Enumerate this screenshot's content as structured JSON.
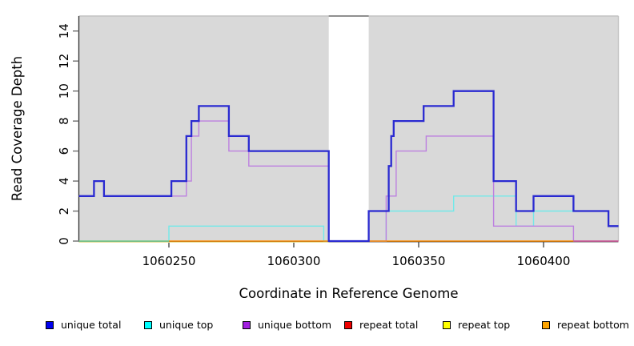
{
  "chart_data": {
    "type": "line",
    "subtype": "step-coverage",
    "title": "",
    "xlabel": "Coordinate in Reference Genome",
    "ylabel": "Read Coverage Depth",
    "xlim": [
      1060214,
      1060430
    ],
    "ylim": [
      0,
      15
    ],
    "x_ticks": [
      1060250,
      1060300,
      1060350,
      1060400
    ],
    "y_ticks": [
      0,
      2,
      4,
      6,
      8,
      10,
      12,
      14
    ],
    "grid": false,
    "plot_background": "#d9d9d9",
    "masked_region": {
      "start": 1060314,
      "end": 1060330,
      "fill": "#ffffff",
      "note": "white vertical band with gray top edge, all series at 0"
    },
    "series": [
      {
        "name": "unique total",
        "color": "#2a2ad1",
        "width": 2.3,
        "hidden": false,
        "points": [
          [
            1060214,
            3
          ],
          [
            1060220,
            4
          ],
          [
            1060224,
            3
          ],
          [
            1060251,
            4
          ],
          [
            1060257,
            7
          ],
          [
            1060259,
            8
          ],
          [
            1060262,
            9
          ],
          [
            1060274,
            7
          ],
          [
            1060282,
            6
          ],
          [
            1060314,
            0
          ],
          [
            1060330,
            2
          ],
          [
            1060338,
            5
          ],
          [
            1060339,
            7
          ],
          [
            1060340,
            8
          ],
          [
            1060352,
            9
          ],
          [
            1060364,
            10
          ],
          [
            1060380,
            4
          ],
          [
            1060389,
            2
          ],
          [
            1060396,
            3
          ],
          [
            1060412,
            2
          ],
          [
            1060426,
            1
          ],
          [
            1060430,
            1
          ]
        ]
      },
      {
        "name": "unique top",
        "color": "#72e9e9",
        "width": 1.4,
        "hidden": false,
        "points": [
          [
            1060214,
            0
          ],
          [
            1060250,
            1
          ],
          [
            1060312,
            0
          ],
          [
            1060337,
            2
          ],
          [
            1060364,
            3
          ],
          [
            1060389,
            1
          ],
          [
            1060396,
            2
          ],
          [
            1060426,
            1
          ],
          [
            1060430,
            1
          ]
        ]
      },
      {
        "name": "unique bottom",
        "color": "#bd80e0",
        "width": 1.4,
        "hidden": false,
        "points": [
          [
            1060214,
            3
          ],
          [
            1060220,
            4
          ],
          [
            1060224,
            3
          ],
          [
            1060257,
            4
          ],
          [
            1060259,
            7
          ],
          [
            1060262,
            8
          ],
          [
            1060274,
            6
          ],
          [
            1060282,
            5
          ],
          [
            1060314,
            0
          ],
          [
            1060337,
            3
          ],
          [
            1060341,
            6
          ],
          [
            1060353,
            7
          ],
          [
            1060380,
            1
          ],
          [
            1060412,
            0
          ],
          [
            1060430,
            0
          ]
        ]
      },
      {
        "name": "repeat total",
        "color": "#e03131",
        "width": 1.4,
        "hidden": true,
        "points": [
          [
            1060412,
            0
          ],
          [
            1060430,
            0
          ]
        ],
        "note": "visible only as pink blend under unique-bottom at baseline right edge"
      },
      {
        "name": "repeat top",
        "color": "#f0ea4a",
        "width": 1.4,
        "hidden": true,
        "points": [
          [
            1060214,
            0
          ],
          [
            1060314,
            0
          ]
        ],
        "note": "visible only as pale-yellow fringe / green blend at left baseline"
      },
      {
        "name": "repeat bottom",
        "color": "#ff8c00",
        "width": 1.6,
        "hidden": false,
        "points": [
          [
            1060250,
            0
          ],
          [
            1060412,
            0
          ]
        ]
      }
    ],
    "baseline_segments": [
      {
        "name": "yellow-fringe",
        "color": "#e9e29e",
        "start": 1060214,
        "end": 1060314,
        "width": 1.1,
        "dy": 1.4
      },
      {
        "name": "green-blend",
        "color": "#7fc87f",
        "start": 1060214,
        "end": 1060250,
        "width": 1.5,
        "dy": 0
      },
      {
        "name": "pink-blend",
        "color": "#cf5a90",
        "start": 1060412,
        "end": 1060430,
        "width": 1.6,
        "dy": 0
      }
    ],
    "legend_position": "bottom"
  },
  "legend": {
    "entries": [
      {
        "label": "unique total",
        "swatch": "#0000ee"
      },
      {
        "label": "unique top",
        "swatch": "#00ffff"
      },
      {
        "label": "unique bottom",
        "swatch": "#a21fe0"
      },
      {
        "label": "repeat total",
        "swatch": "#ee0000"
      },
      {
        "label": "repeat top",
        "swatch": "#ffff00"
      },
      {
        "label": "repeat bottom",
        "swatch": "#ffa500"
      }
    ]
  },
  "colors": {
    "axis_dark": "#2e2e2e",
    "tick_gray": "#6e6e6e",
    "border_light": "#c2c2c2",
    "masked_top_edge": "#8f8f8f",
    "text": "#000000"
  }
}
